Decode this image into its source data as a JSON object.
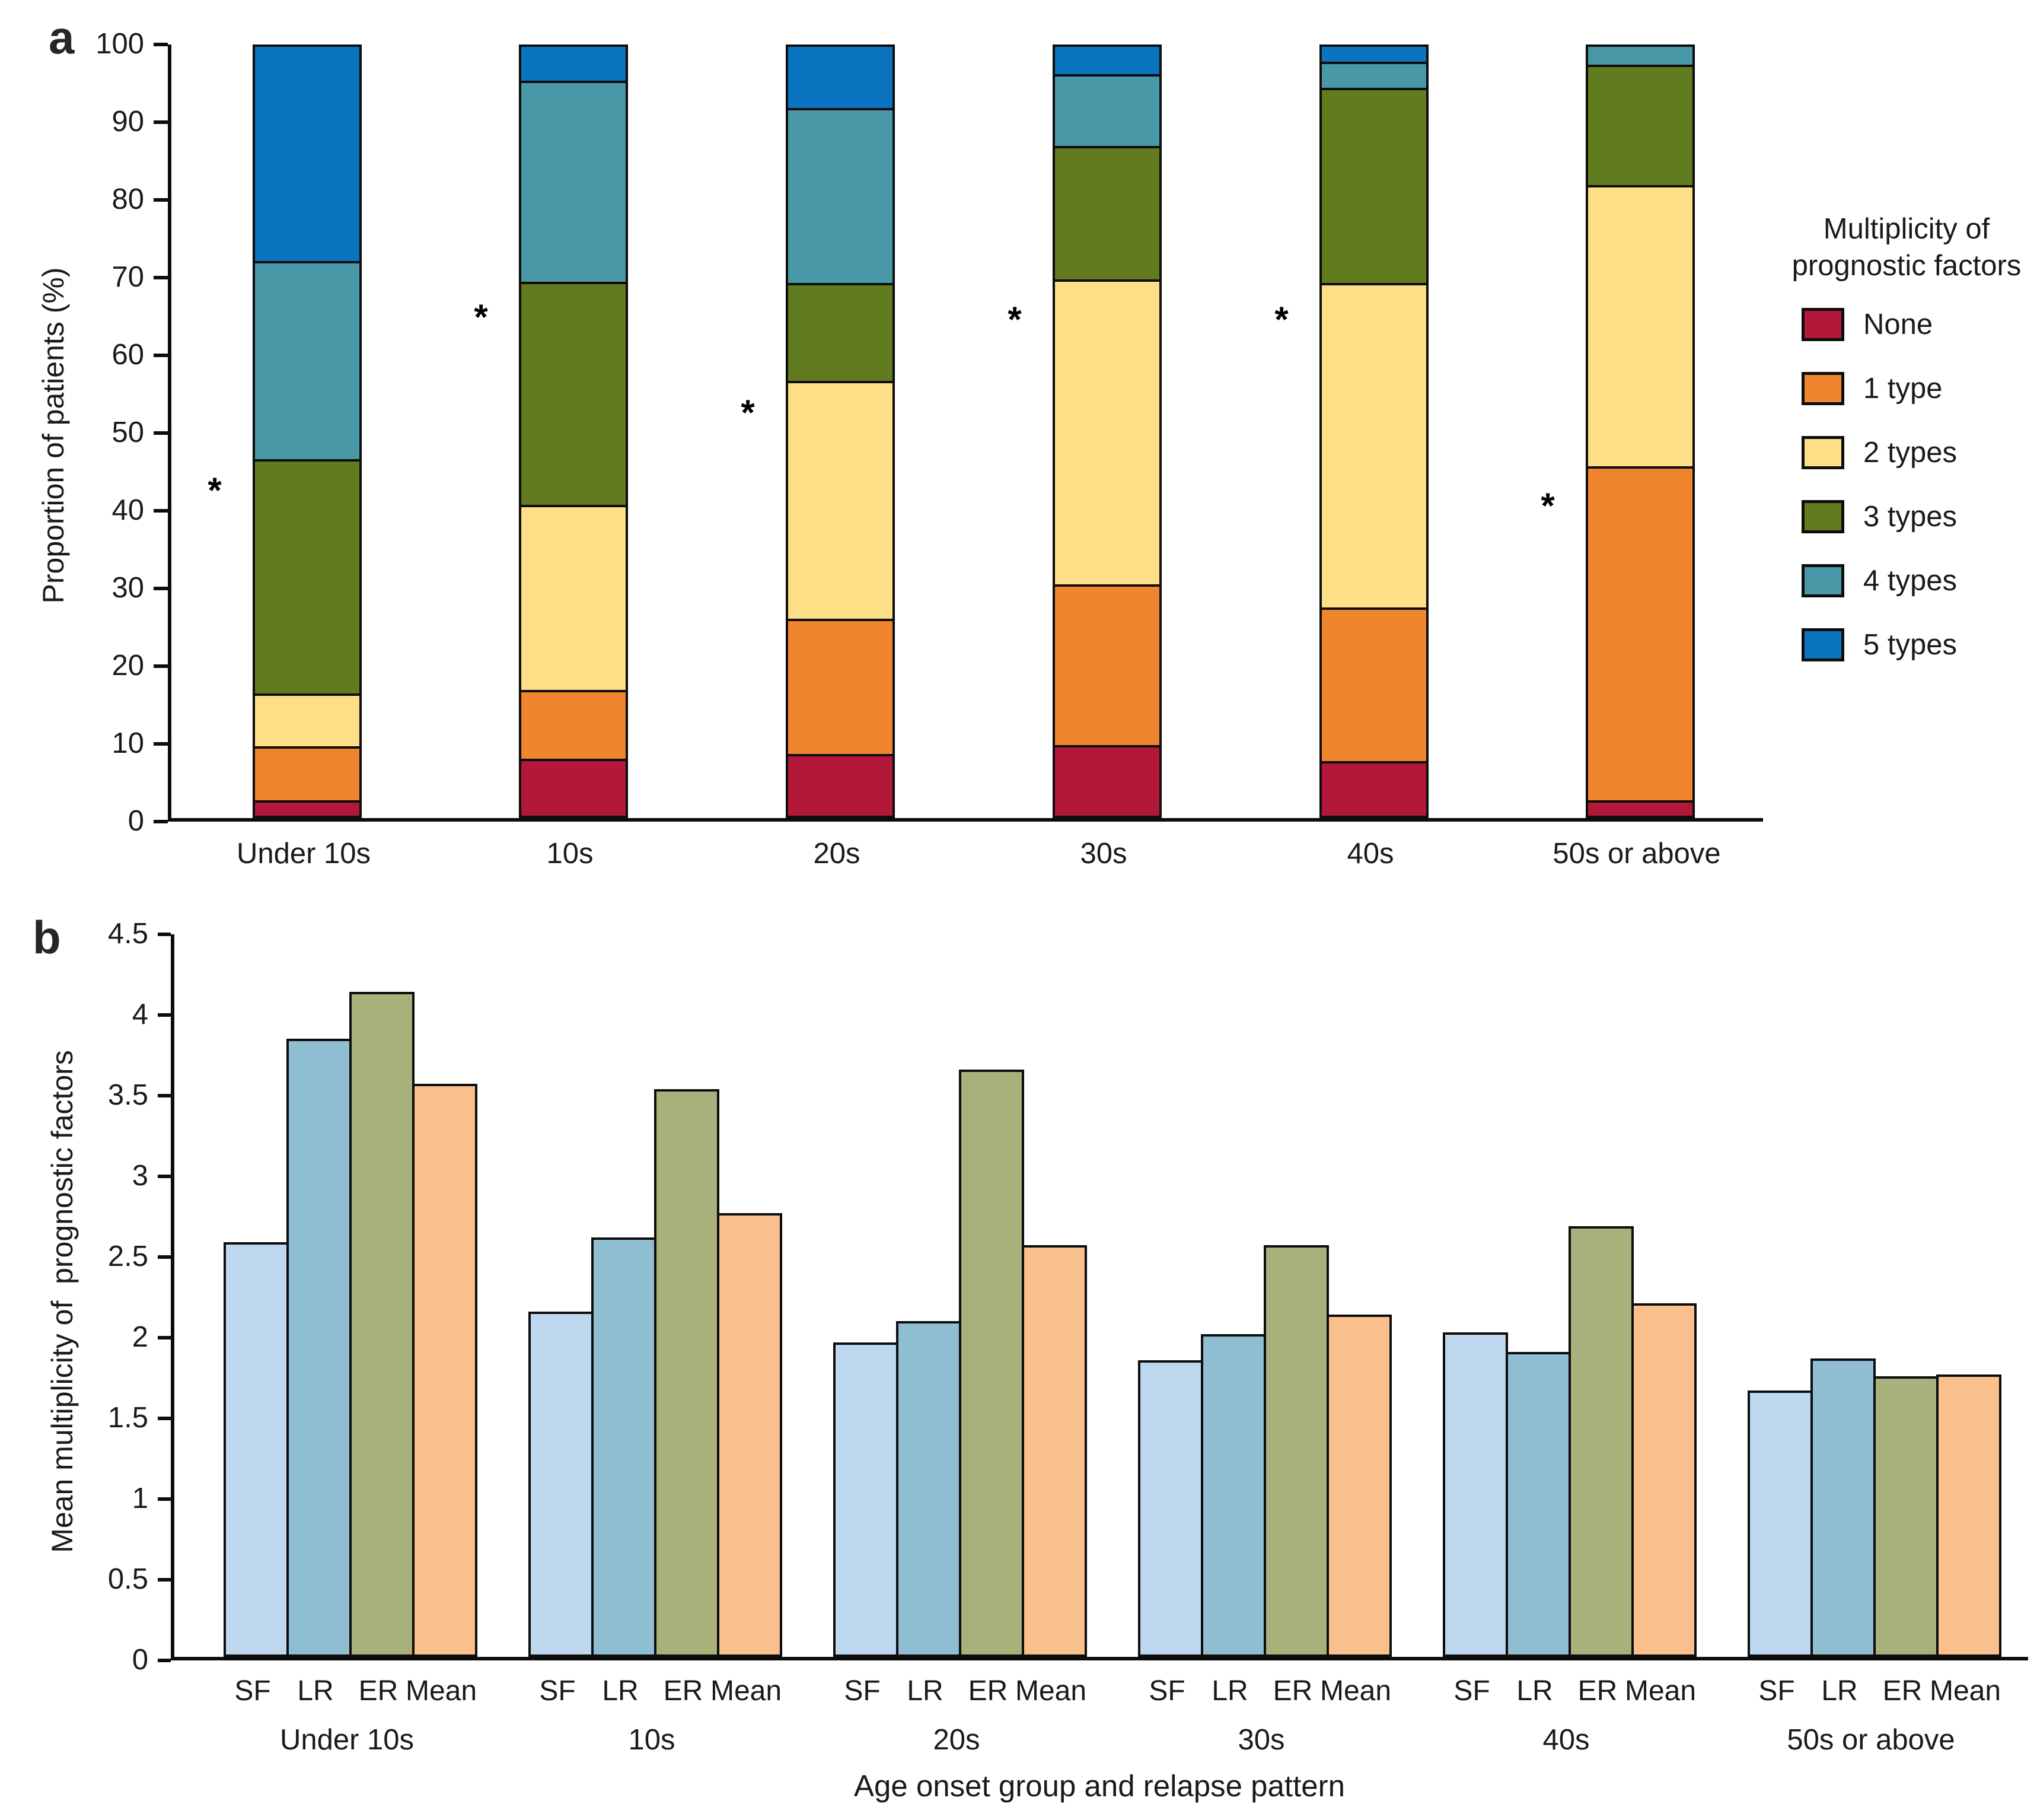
{
  "figure": {
    "panel_a_letter": "a",
    "panel_b_letter": "b",
    "asterisk_symbol": "*"
  },
  "chart_data": [
    {
      "type": "bar",
      "variant": "stacked",
      "panel": "a",
      "ylabel": "Proportion of patients (%)",
      "xlabel": "",
      "ylim": [
        0,
        100
      ],
      "ytick_step": 10,
      "ytick_labels": [
        "0",
        "10",
        "20",
        "30",
        "40",
        "50",
        "60",
        "70",
        "80",
        "90",
        "100"
      ],
      "grid": "off",
      "legend_position": "right",
      "legend_title": "Multiplicity of\nprognostic factors",
      "categories": [
        "Under 10s",
        "10s",
        "20s",
        "30s",
        "40s",
        "50s or above"
      ],
      "series": [
        {
          "name": "None",
          "color": "#b31739",
          "values": [
            2.3,
            7.7,
            8.3,
            9.4,
            7.4,
            2.3
          ]
        },
        {
          "name": "1 type",
          "color": "#ef852d",
          "values": [
            7.0,
            8.9,
            17.5,
            20.8,
            19.8,
            43.2
          ]
        },
        {
          "name": "2 types",
          "color": "#fcdf87",
          "values": [
            6.8,
            23.9,
            30.7,
            39.4,
            42.0,
            36.3
          ]
        },
        {
          "name": "3 types",
          "color": "#627b1e",
          "values": [
            30.3,
            28.8,
            12.7,
            17.3,
            25.2,
            15.6
          ]
        },
        {
          "name": "4 types",
          "color": "#4898a7",
          "values": [
            25.6,
            26.0,
            22.6,
            9.3,
            3.4,
            2.6
          ]
        },
        {
          "name": "5 types",
          "color": "#0b74c0",
          "values": [
            28.0,
            4.7,
            8.2,
            3.8,
            2.2,
            0
          ]
        }
      ],
      "annotations": {
        "symbol": "*",
        "heights_pct": [
          43.5,
          65.8,
          53.5,
          65.5,
          65.5,
          41.5
        ]
      }
    },
    {
      "type": "bar",
      "variant": "grouped",
      "panel": "b",
      "ylabel": "Mean multiplicity of  prognostic factors",
      "xlabel": "Age onset group and relapse pattern",
      "ylim": [
        0,
        4.5
      ],
      "ytick_step": 0.5,
      "ytick_labels": [
        "0",
        "0.5",
        "1",
        "1.5",
        "2",
        "2.5",
        "3",
        "3.5",
        "4",
        "4.5"
      ],
      "grid": "off",
      "groups": [
        "Under 10s",
        "10s",
        "20s",
        "30s",
        "40s",
        "50s or above"
      ],
      "bar_labels": [
        "SF",
        "LR",
        "ER",
        "Mean"
      ],
      "series": [
        {
          "name": "SF",
          "color": "#bdd7ee",
          "values": [
            2.57,
            2.14,
            1.95,
            1.84,
            2.01,
            1.65
          ]
        },
        {
          "name": "LR",
          "color": "#8fbdd1",
          "values": [
            3.83,
            2.6,
            2.08,
            2.0,
            1.89,
            1.85
          ]
        },
        {
          "name": "ER",
          "color": "#a8b07b",
          "values": [
            4.12,
            3.52,
            3.64,
            2.55,
            2.67,
            1.74
          ]
        },
        {
          "name": "Mean",
          "color": "#f9c08d",
          "values": [
            3.55,
            2.75,
            2.55,
            2.12,
            2.19,
            1.75
          ]
        }
      ]
    }
  ]
}
